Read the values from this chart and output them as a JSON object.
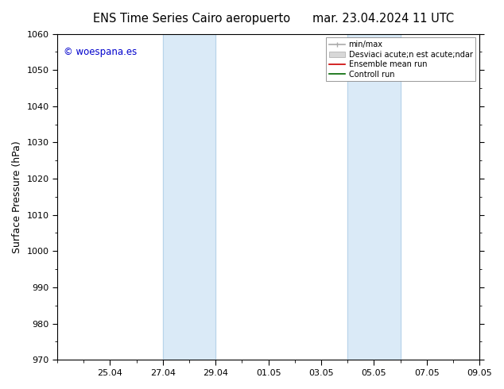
{
  "title_left": "ENS Time Series Cairo aeropuerto",
  "title_right": "mar. 23.04.2024 11 UTC",
  "ylabel": "Surface Pressure (hPa)",
  "ylim": [
    970,
    1060
  ],
  "yticks": [
    970,
    980,
    990,
    1000,
    1010,
    1020,
    1030,
    1040,
    1050,
    1060
  ],
  "xtick_labels": [
    "25.04",
    "27.04",
    "29.04",
    "01.05",
    "03.05",
    "05.05",
    "07.05",
    "09.05"
  ],
  "xtick_positions": [
    2,
    4,
    6,
    8,
    10,
    12,
    14,
    16
  ],
  "shaded_bands": [
    {
      "xmin": 4.0,
      "xmax": 6.0
    },
    {
      "xmin": 11.0,
      "xmax": 13.0
    }
  ],
  "shade_color": "#daeaf7",
  "background_color": "#ffffff",
  "plot_bg_color": "#ffffff",
  "copyright_text": "© woespana.es",
  "copyright_color": "#0000cc",
  "legend_entries": [
    {
      "label": "min/max",
      "color": "#aaaaaa",
      "lw": 1.2,
      "linestyle": "-"
    },
    {
      "label": "Desviaci acute;n est acute;ndar",
      "color": "#cccccc",
      "lw": 8,
      "linestyle": "-"
    },
    {
      "label": "Ensemble mean run",
      "color": "#cc0000",
      "lw": 1.2,
      "linestyle": "-"
    },
    {
      "label": "Controll run",
      "color": "#006600",
      "lw": 1.2,
      "linestyle": "-"
    }
  ],
  "title_fontsize": 10.5,
  "axis_fontsize": 9,
  "tick_fontsize": 8,
  "n_xpoints": 16,
  "xlim": [
    0,
    16
  ]
}
